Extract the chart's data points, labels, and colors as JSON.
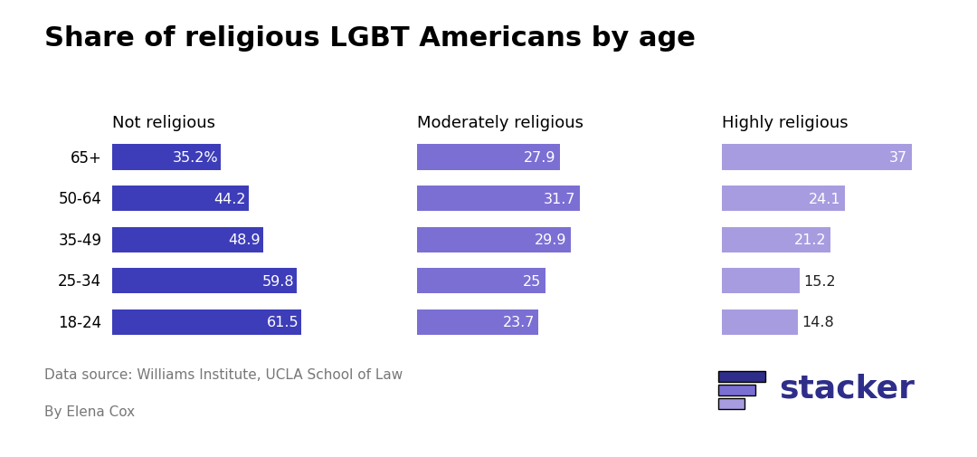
{
  "title": "Share of religious LGBT Americans by age",
  "age_groups": [
    "18-24",
    "25-34",
    "35-49",
    "50-64",
    "65+"
  ],
  "categories": [
    "Not religious",
    "Moderately religious",
    "Highly religious"
  ],
  "values": {
    "Not religious": [
      61.5,
      59.8,
      48.9,
      44.2,
      35.2
    ],
    "Moderately religious": [
      23.7,
      25.0,
      29.9,
      31.7,
      27.9
    ],
    "Highly religious": [
      14.8,
      15.2,
      21.2,
      24.1,
      37.0
    ]
  },
  "labels": {
    "Not religious": [
      "61.5",
      "59.8",
      "48.9",
      "44.2",
      "35.2%"
    ],
    "Moderately religious": [
      "23.7",
      "25",
      "29.9",
      "31.7",
      "27.9"
    ],
    "Highly religious": [
      "14.8",
      "15.2",
      "21.2",
      "24.1",
      "37"
    ]
  },
  "label_inside": {
    "Not religious": [
      true,
      true,
      true,
      true,
      true
    ],
    "Moderately religious": [
      true,
      true,
      true,
      true,
      true
    ],
    "Highly religious": [
      false,
      false,
      true,
      true,
      true
    ]
  },
  "colors": {
    "Not religious": "#3d3dba",
    "Moderately religious": "#7b6fd4",
    "Highly religious": "#a89ce0"
  },
  "background_color": "#ffffff",
  "bar_height": 0.62,
  "xlim_not": [
    0,
    75
  ],
  "xlim_mod": [
    0,
    45
  ],
  "xlim_high": [
    0,
    45
  ],
  "datasource": "Data source: Williams Institute, UCLA School of Law",
  "author": "By Elena Cox",
  "stacker_color": "#2e2e8a",
  "stacker_bar_colors": [
    "#2e2e8a",
    "#7b6fd4",
    "#a89ce0"
  ]
}
